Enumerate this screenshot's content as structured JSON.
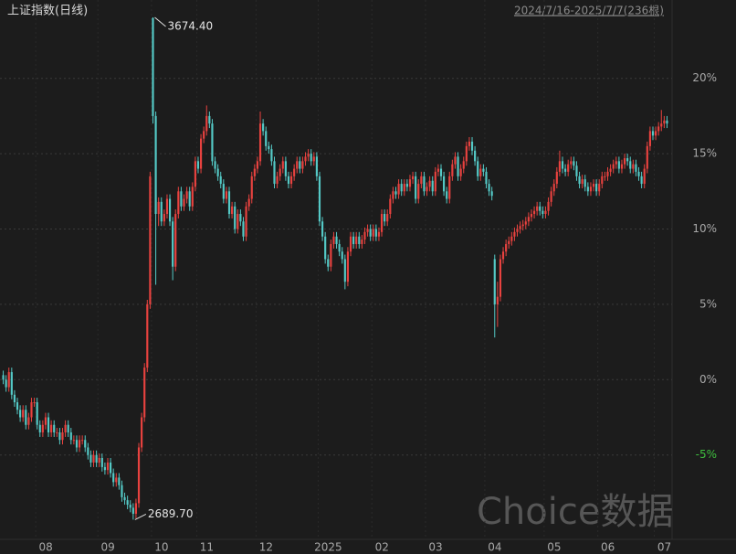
{
  "chart_data": {
    "type": "candlestick",
    "title": "上证指数(日线)",
    "subtitle": "2024/7/16-2025/7/7(236根)",
    "watermark": "Choice数据",
    "up_color": "#e8423f",
    "down_color": "#54c9c6",
    "negative_tick_color": "#3fbf3f",
    "grid": true,
    "ylim": [
      -10.6,
      25.2
    ],
    "yticks": [
      {
        "value": -5,
        "label": "-5%"
      },
      {
        "value": 0,
        "label": "0%"
      },
      {
        "value": 5,
        "label": "5%"
      },
      {
        "value": 10,
        "label": "10%"
      },
      {
        "value": 15,
        "label": "15%"
      },
      {
        "value": 20,
        "label": "20%"
      }
    ],
    "xticks": [
      {
        "value": 12,
        "label": "08"
      },
      {
        "value": 34,
        "label": "09"
      },
      {
        "value": 53,
        "label": "10"
      },
      {
        "value": 69,
        "label": "11"
      },
      {
        "value": 90,
        "label": "12"
      },
      {
        "value": 112,
        "label": "2025"
      },
      {
        "value": 131,
        "label": "02"
      },
      {
        "value": 150,
        "label": "03"
      },
      {
        "value": 171,
        "label": "04"
      },
      {
        "value": 192,
        "label": "05"
      },
      {
        "value": 211,
        "label": "06"
      },
      {
        "value": 231,
        "label": "07"
      }
    ],
    "annotations": [
      {
        "text": "3674.40",
        "at": "max"
      },
      {
        "text": "2689.70",
        "at": "min"
      }
    ],
    "open": [
      0.3,
      0,
      -0.5,
      0.5,
      -1,
      -1.5,
      -2,
      -2.5,
      -2,
      -3,
      -2.5,
      -1.5,
      -1.5,
      -3,
      -3.5,
      -3,
      -2.5,
      -3.5,
      -3,
      -3.5,
      -3.5,
      -4,
      -3.5,
      -3,
      -3.5,
      -4,
      -4,
      -4.5,
      -4,
      -4,
      -4.5,
      -5,
      -5.5,
      -5,
      -5.5,
      -5.2,
      -5.8,
      -6,
      -5.5,
      -6.2,
      -6.8,
      -6.5,
      -7,
      -7.8,
      -8,
      -8.3,
      -8.5,
      -8.9,
      -8.2,
      -4.5,
      -2.5,
      0.8,
      5,
      24,
      17.5,
      11,
      11.8,
      10.5,
      11,
      12,
      10.5,
      7.5,
      11,
      12.5,
      11.5,
      12,
      12.5,
      11.5,
      12.8,
      14.5,
      14,
      16,
      16.5,
      17.5,
      17,
      14.5,
      14,
      13.5,
      13,
      12,
      12.5,
      11,
      11.5,
      10,
      11,
      10.5,
      9.5,
      11.5,
      12,
      13.5,
      14,
      14.5,
      17,
      16.5,
      15.5,
      15.3,
      14.5,
      13,
      13.5,
      14,
      14.5,
      13.5,
      13,
      13.5,
      14,
      14.5,
      14,
      14.5,
      14.8,
      15,
      14.5,
      14.8,
      13.5,
      10.5,
      9.5,
      8,
      7.5,
      9,
      9.5,
      9,
      8.5,
      8,
      6.5,
      8.5,
      9.5,
      9,
      9.5,
      9,
      9.3,
      9.8,
      10,
      9.5,
      10,
      9.5,
      9.8,
      11,
      10.5,
      11,
      12,
      12.5,
      12.3,
      13,
      12.5,
      13,
      12.8,
      13.3,
      13.5,
      12,
      13,
      13.5,
      12.5,
      12.8,
      13.2,
      12.5,
      13.8,
      14,
      13.5,
      12.5,
      12,
      13.5,
      14.3,
      14.8,
      13.5,
      14,
      14.5,
      15.5,
      15.8,
      15.2,
      14.5,
      13.5,
      14,
      13.8,
      13,
      12.5,
      8,
      5,
      5.5,
      8,
      8.5,
      9,
      9.2,
      9.5,
      9.8,
      10,
      10.2,
      10.3,
      10.5,
      10.8,
      11,
      11.2,
      11.5,
      11.2,
      11,
      11.2,
      11.8,
      12.5,
      13,
      13.8,
      14.5,
      14,
      13.8,
      14.3,
      14.5,
      14.2,
      13.5,
      13,
      13.3,
      12.8,
      12.5,
      12.8,
      13,
      12.5,
      13,
      13.5,
      13.5,
      13.8,
      14,
      14.3,
      14.5,
      14,
      14.3,
      14.7,
      14.5,
      14,
      14.3,
      13.8,
      13.5,
      13,
      14,
      15.5,
      16.5,
      16.2,
      16.5,
      16.8,
      17,
      17.2
    ],
    "high": [
      0.6,
      0.3,
      0.8,
      0.8,
      -0.7,
      -1.2,
      -1.7,
      -1.7,
      -1.7,
      -2.2,
      -1.2,
      -1.2,
      -1.2,
      -2.7,
      -2.7,
      -2.2,
      -2.2,
      -2.7,
      -2.7,
      -3.2,
      -3.2,
      -3.2,
      -2.7,
      -2.7,
      -3.2,
      -3.7,
      -3.7,
      -3.7,
      -3.7,
      -3.7,
      -4.2,
      -4.7,
      -4.7,
      -4.7,
      -4.9,
      -4.9,
      -5.5,
      -5.2,
      -5.2,
      -5.9,
      -6.2,
      -6.2,
      -6.7,
      -7.5,
      -7.7,
      -8,
      -8.2,
      -7.9,
      -4.2,
      -2.2,
      1.1,
      5.3,
      13.8,
      24.05,
      17.8,
      12.1,
      12.1,
      11.3,
      12.3,
      12.3,
      10.8,
      11.3,
      12.8,
      12.8,
      12.3,
      12.8,
      12.8,
      13.1,
      14.8,
      14.8,
      16.3,
      16.8,
      18.2,
      17.8,
      17.3,
      14.8,
      14.3,
      13.8,
      13.3,
      12.8,
      12.8,
      11.8,
      11.8,
      11.3,
      11.3,
      10.8,
      11.8,
      12.3,
      13.8,
      14.3,
      14.8,
      17.8,
      17.3,
      16.8,
      15.8,
      15.6,
      14.8,
      13.8,
      14.3,
      14.8,
      14.8,
      13.8,
      13.8,
      14.3,
      14.8,
      14.8,
      14.8,
      15.1,
      15.3,
      15.3,
      15.1,
      15.1,
      13.8,
      10.8,
      9.8,
      8.3,
      9.3,
      9.8,
      9.8,
      9.3,
      8.8,
      8.3,
      8.8,
      9.8,
      9.8,
      9.8,
      9.8,
      9.6,
      10.1,
      10.3,
      10.3,
      10.3,
      10.3,
      10.1,
      11.3,
      11.3,
      11.3,
      12.3,
      12.8,
      12.8,
      13.3,
      13.3,
      13.3,
      13.3,
      13.6,
      13.8,
      13.8,
      13.3,
      13.8,
      13.8,
      13.1,
      13.5,
      13.5,
      14.1,
      14.3,
      14.3,
      13.8,
      12.8,
      13.8,
      14.6,
      15.1,
      15.1,
      14.3,
      14.8,
      15.8,
      16.1,
      16.1,
      15.5,
      14.8,
      14.3,
      14.3,
      14.1,
      13.3,
      12.8,
      8.3,
      6.5,
      8.3,
      8.8,
      9.3,
      9.5,
      9.8,
      10.1,
      10.3,
      10.5,
      10.6,
      10.8,
      11.1,
      11.3,
      11.5,
      11.8,
      11.8,
      11.5,
      11.5,
      12.1,
      12.8,
      13.3,
      14.1,
      15.2,
      14.8,
      14.3,
      14.6,
      14.8,
      14.8,
      14.5,
      13.8,
      13.6,
      13.6,
      13.1,
      13.1,
      13.3,
      13.3,
      13.3,
      13.8,
      13.8,
      14.1,
      14.3,
      14.6,
      14.8,
      14.8,
      14.6,
      15,
      15,
      14.8,
      14.6,
      14.6,
      14.1,
      13.8,
      14.3,
      15.8,
      16.8,
      16.8,
      16.8,
      17.1,
      17.9,
      17.5,
      17.5
    ],
    "low": [
      -0.3,
      -0.8,
      -0.8,
      -1.3,
      -1.8,
      -2.3,
      -2.8,
      -2.8,
      -3.3,
      -3.3,
      -2.8,
      -1.8,
      -3.3,
      -3.8,
      -3.8,
      -3.3,
      -3.8,
      -3.8,
      -3.8,
      -3.8,
      -4.3,
      -4.3,
      -3.8,
      -3.8,
      -4.3,
      -4.3,
      -4.8,
      -4.8,
      -4.3,
      -4.8,
      -5.3,
      -5.8,
      -5.8,
      -5.8,
      -5.8,
      -6.1,
      -6.3,
      -6.3,
      -6.5,
      -7.1,
      -7.1,
      -7.3,
      -8.1,
      -8.3,
      -8.6,
      -8.8,
      -9.29,
      -9.2,
      -8.5,
      -4.8,
      -2.8,
      0.5,
      4.7,
      17,
      6.3,
      10.2,
      10.2,
      10.2,
      10.7,
      10.2,
      6.6,
      7.2,
      10.7,
      11.2,
      11.2,
      11.7,
      11.2,
      11.2,
      12.5,
      13.7,
      13.7,
      15.7,
      16.2,
      16.7,
      14.2,
      13.7,
      13.2,
      12.7,
      11.7,
      11.7,
      10.7,
      10.7,
      9.7,
      9.7,
      10.2,
      9.2,
      9.2,
      11.2,
      11.7,
      13.2,
      13.7,
      14.2,
      16.2,
      15.2,
      15,
      14.2,
      12.7,
      12.7,
      13.2,
      13.7,
      13.2,
      12.7,
      12.7,
      13.2,
      13.7,
      13.7,
      13.7,
      14.2,
      14.5,
      14.2,
      14.2,
      13.2,
      10.2,
      9.2,
      7.7,
      7.2,
      7.2,
      8.7,
      8.7,
      8.2,
      7.7,
      6,
      6.2,
      8.2,
      8.7,
      8.7,
      8.7,
      8.7,
      9,
      9.5,
      9.2,
      9.2,
      9.2,
      9.2,
      9.5,
      10.2,
      10.2,
      10.7,
      11.7,
      12,
      12,
      12.2,
      12.2,
      12.5,
      12.5,
      13,
      11.7,
      11.7,
      12.7,
      12.2,
      12.2,
      12.5,
      12.2,
      12.2,
      13.5,
      13.2,
      12.2,
      11.7,
      11.7,
      13.2,
      14,
      13.2,
      13.2,
      13.7,
      14.2,
      15.2,
      14.9,
      14.2,
      13.2,
      13.2,
      13.5,
      12.7,
      12.2,
      11.9,
      2.8,
      3.5,
      5.2,
      7.7,
      8.2,
      8.7,
      8.9,
      9.2,
      9.5,
      9.7,
      9.9,
      10,
      10.2,
      10.5,
      10.7,
      10.9,
      10.9,
      10.7,
      10.7,
      10.9,
      11.5,
      12.2,
      12.7,
      13.5,
      13.7,
      13.5,
      13.5,
      14,
      13.9,
      13.2,
      12.7,
      12.7,
      12.5,
      12.2,
      12.2,
      12.5,
      12.2,
      12.2,
      12.7,
      13.2,
      13.2,
      13.5,
      13.7,
      14,
      13.7,
      13.7,
      14,
      14.2,
      13.7,
      13.7,
      13.5,
      13.2,
      12.7,
      12.7,
      13.7,
      15.2,
      15.9,
      15.9,
      16.2,
      16.5,
      16.7,
      16.7
    ],
    "close": [
      0,
      -0.5,
      0.5,
      -1,
      -1.5,
      -2,
      -2.5,
      -2,
      -3,
      -2.5,
      -1.5,
      -1.5,
      -3,
      -3.5,
      -3,
      -2.5,
      -3.5,
      -3,
      -3.5,
      -3.5,
      -4,
      -3.5,
      -3,
      -3.5,
      -4,
      -4,
      -4.5,
      -4,
      -4,
      -4.5,
      -5,
      -5.5,
      -5,
      -5.5,
      -5.2,
      -5.8,
      -6,
      -5.5,
      -6.2,
      -6.8,
      -6.5,
      -7,
      -7.8,
      -8,
      -8.3,
      -8.5,
      -8.9,
      -8.2,
      -4.5,
      -2.5,
      0.8,
      5,
      13.5,
      17.5,
      11,
      11.8,
      10.5,
      11,
      12,
      10.5,
      7.5,
      11,
      12.5,
      11.5,
      12,
      12.5,
      11.5,
      12.8,
      14.5,
      14,
      16,
      16.5,
      17.5,
      17,
      14.5,
      14,
      13.5,
      13,
      12,
      12.5,
      11,
      11.5,
      10,
      11,
      10.5,
      9.5,
      11.5,
      12,
      13.5,
      14,
      14.5,
      17,
      16.5,
      15.5,
      15.3,
      14.5,
      13,
      13.5,
      14,
      14.5,
      13.5,
      13,
      13.5,
      14,
      14.5,
      14,
      14.5,
      14.8,
      15,
      14.5,
      14.8,
      13.5,
      10.5,
      9.5,
      8,
      7.5,
      9,
      9.5,
      9,
      8.5,
      8,
      6.5,
      8.5,
      9.5,
      9,
      9.5,
      9,
      9.3,
      9.8,
      10,
      9.5,
      10,
      9.5,
      9.8,
      11,
      10.5,
      11,
      12,
      12.5,
      12.3,
      13,
      12.5,
      13,
      12.8,
      13.3,
      13.5,
      12,
      13,
      13.5,
      12.5,
      12.8,
      13.2,
      12.5,
      13.8,
      14,
      13.5,
      12.5,
      12,
      13.5,
      14.3,
      14.8,
      13.5,
      14,
      14.5,
      15.5,
      15.8,
      15.2,
      14.5,
      13.5,
      14,
      13.8,
      13,
      12.5,
      12.2,
      5,
      5.5,
      8,
      8.5,
      9,
      9.2,
      9.5,
      9.8,
      10,
      10.2,
      10.3,
      10.5,
      10.8,
      11,
      11.2,
      11.5,
      11.2,
      11,
      11.2,
      11.8,
      12.5,
      13,
      13.8,
      14.5,
      14,
      13.8,
      14.3,
      14.5,
      14.2,
      13.5,
      13,
      13.3,
      12.8,
      12.5,
      12.8,
      13,
      12.5,
      13,
      13.5,
      13.5,
      13.8,
      14,
      14.3,
      14.5,
      14,
      14.3,
      14.7,
      14.5,
      14,
      14.3,
      13.8,
      13.5,
      13,
      14,
      15.5,
      16.5,
      16.2,
      16.5,
      16.8,
      17,
      17.2,
      17
    ]
  }
}
